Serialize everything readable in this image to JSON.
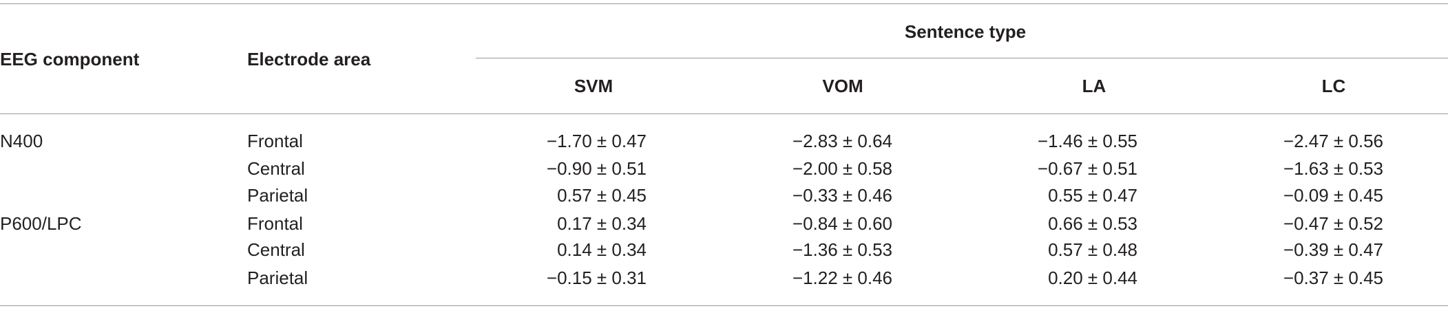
{
  "table": {
    "header": {
      "component": "EEG component",
      "area": "Electrode area",
      "group": "Sentence type",
      "columns": [
        "SVM",
        "VOM",
        "LA",
        "LC"
      ]
    },
    "groups": [
      {
        "component": "N400",
        "rows": [
          {
            "area": "Frontal",
            "values": [
              "−1.70 ± 0.47",
              "−2.83 ± 0.64",
              "−1.46 ± 0.55",
              "−2.47 ± 0.56"
            ]
          },
          {
            "area": "Central",
            "values": [
              "−0.90 ± 0.51",
              "−2.00 ± 0.58",
              "−0.67 ± 0.51",
              "−1.63 ± 0.53"
            ]
          },
          {
            "area": "Parietal",
            "values": [
              "0.57 ± 0.45",
              "−0.33 ± 0.46",
              "0.55 ± 0.47",
              "−0.09 ± 0.45"
            ]
          }
        ]
      },
      {
        "component": "P600/LPC",
        "rows": [
          {
            "area": "Frontal",
            "values": [
              "0.17 ± 0.34",
              "−0.84 ± 0.60",
              "0.66 ± 0.53",
              "−0.47 ± 0.52"
            ]
          },
          {
            "area": "Central",
            "values": [
              "0.14 ± 0.34",
              "−1.36 ± 0.53",
              "0.57 ± 0.48",
              "−0.39 ± 0.47"
            ]
          },
          {
            "area": "Parietal",
            "values": [
              "−0.15 ± 0.31",
              "−1.22 ± 0.46",
              "0.20 ± 0.44",
              "−0.37 ± 0.45"
            ]
          }
        ]
      }
    ]
  }
}
